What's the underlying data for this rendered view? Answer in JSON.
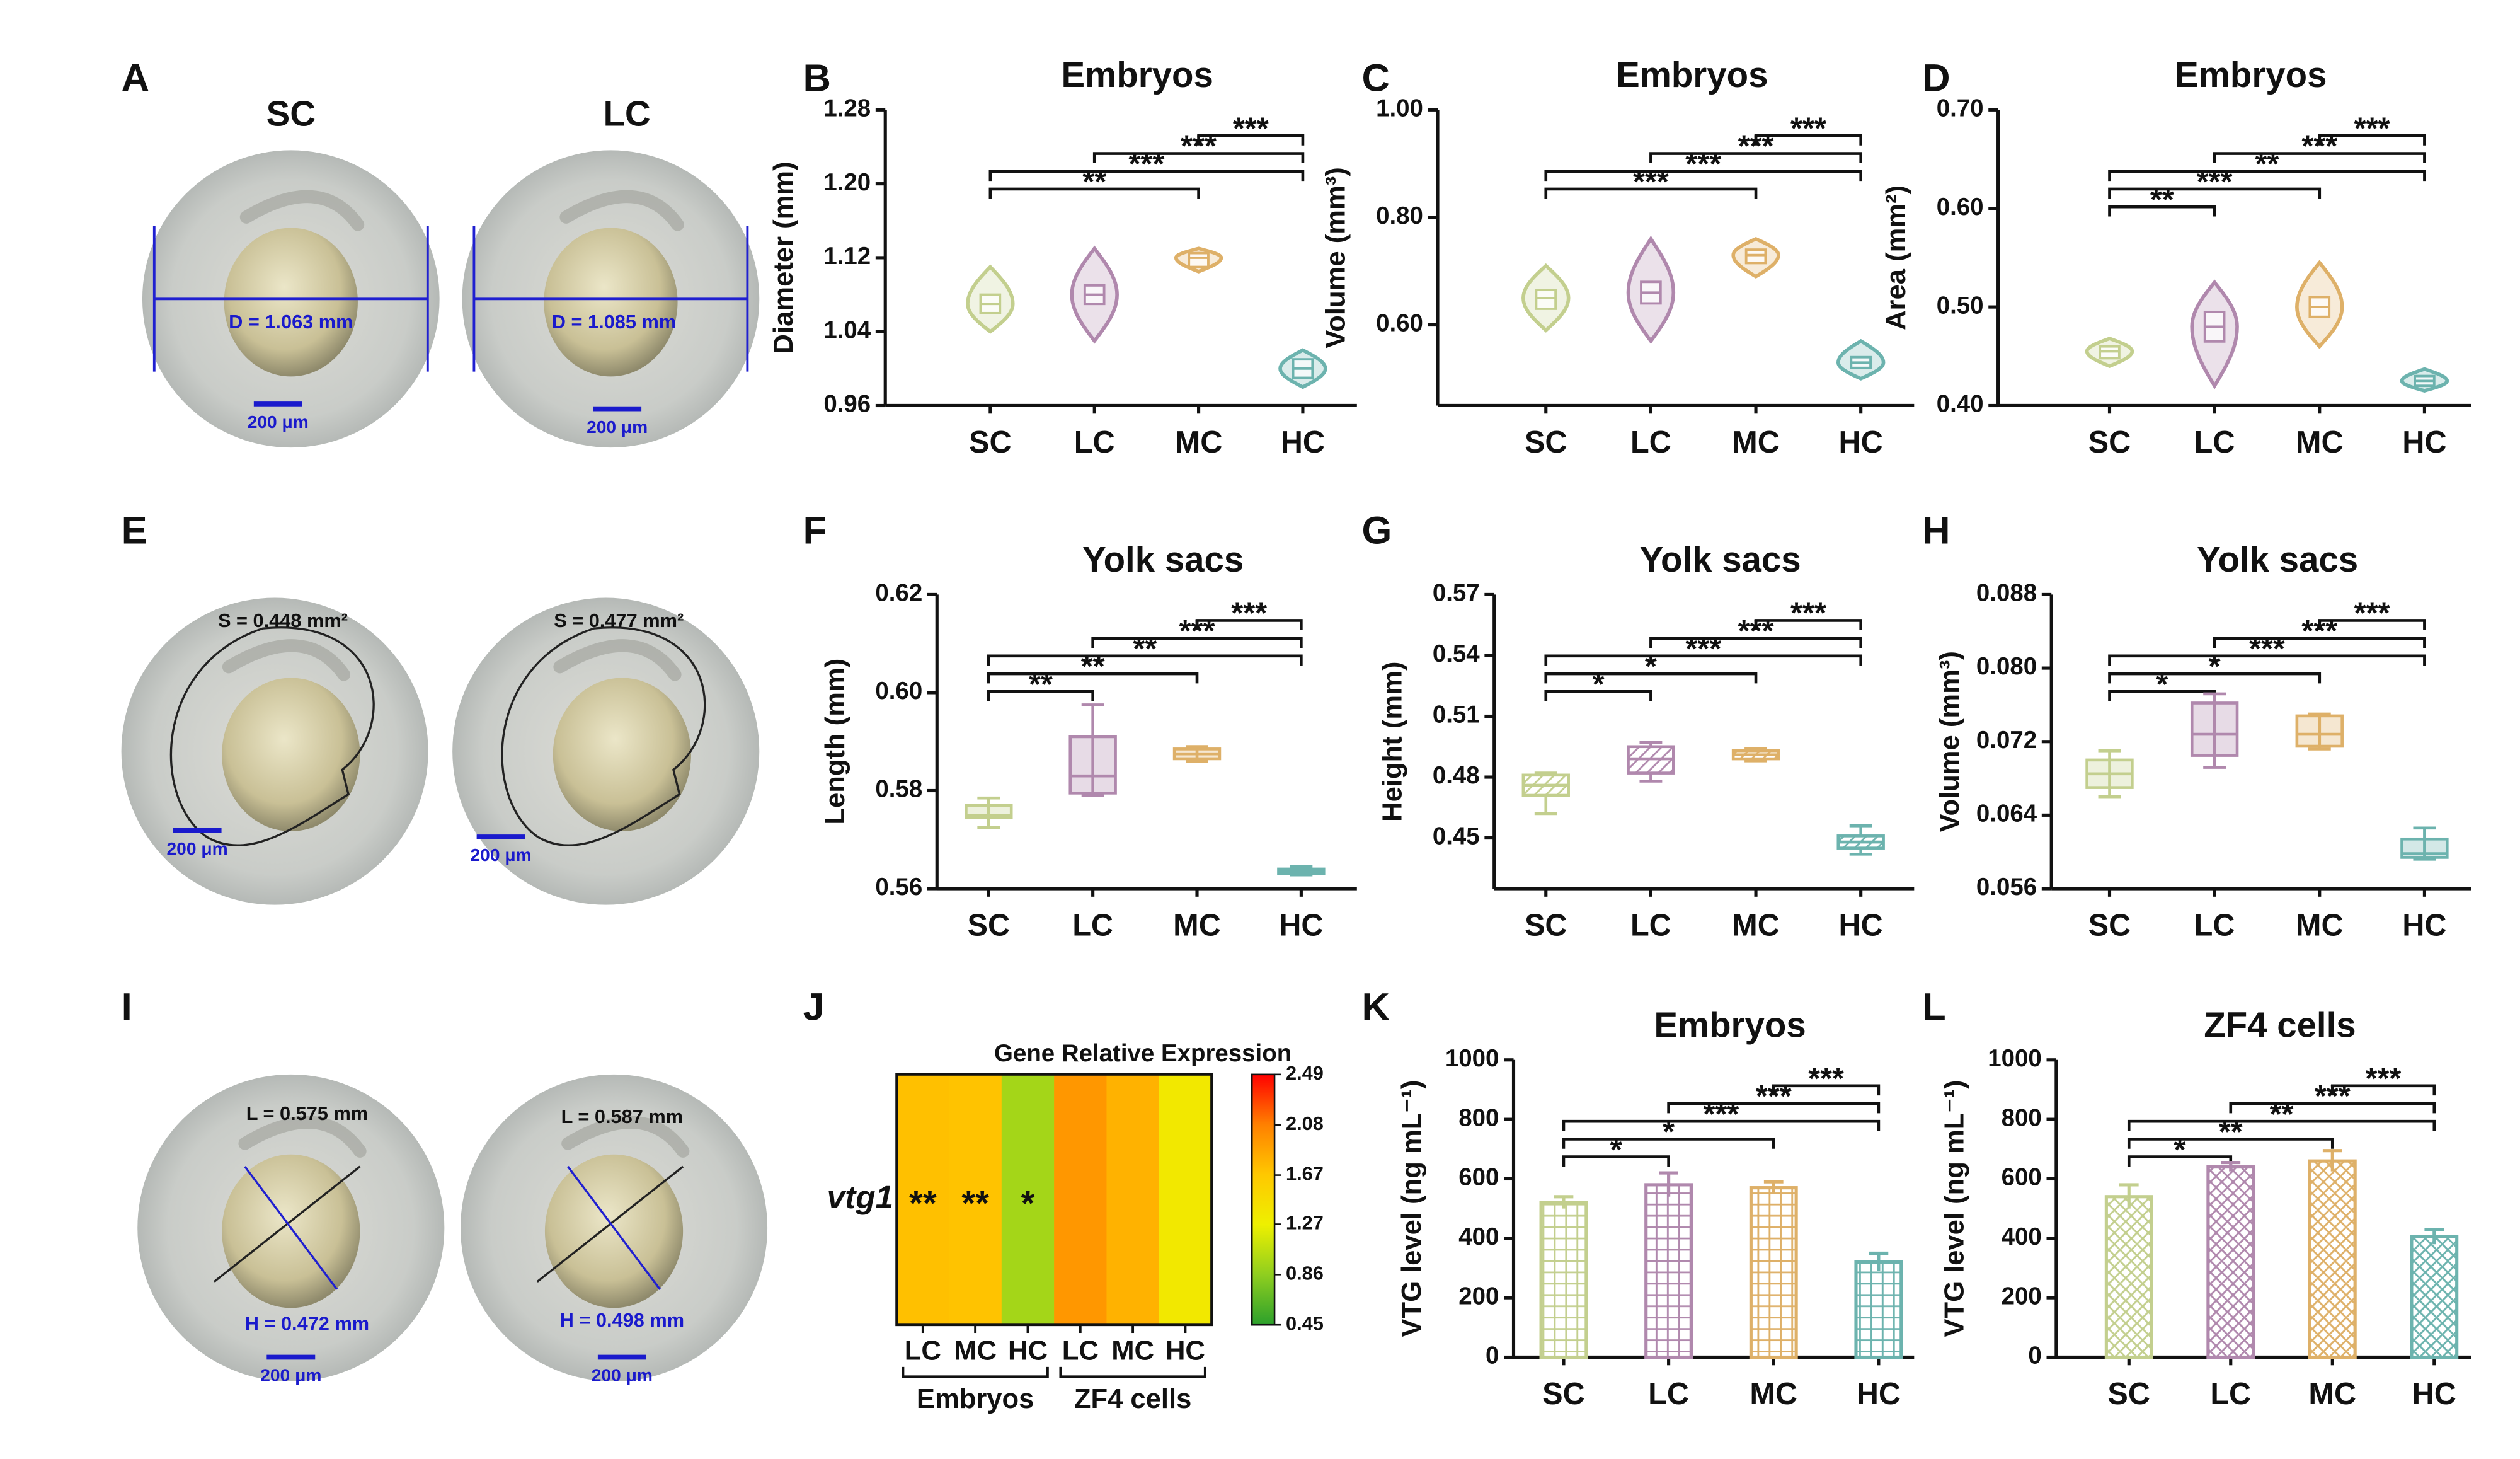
{
  "photo_panels": [
    {
      "letter": "A",
      "images": [
        {
          "title": "SC",
          "measure": "D = 1.063 mm",
          "scale": "200 μm"
        },
        {
          "title": "LC",
          "measure": "D = 1.085 mm",
          "scale": "200 μm"
        }
      ]
    },
    {
      "letter": "E",
      "images": [
        {
          "measure": "S = 0.448 mm²",
          "scale": "200 μm"
        },
        {
          "measure": "S = 0.477 mm²",
          "scale": "200 μm"
        }
      ]
    },
    {
      "letter": "I",
      "images": [
        {
          "measure": "L = 0.575 mm",
          "measure2": "H = 0.472 mm",
          "scale": "200 μm"
        },
        {
          "measure": "L = 0.587 mm",
          "measure2": "H = 0.498 mm",
          "scale": "200 μm"
        }
      ]
    }
  ],
  "chart_data": [
    {
      "letter": "B",
      "type": "violin",
      "title": "Embryos",
      "ylabel": "Diameter (mm)",
      "categories": [
        "SC",
        "LC",
        "MC",
        "HC"
      ],
      "colors": [
        "#c3cf8e",
        "#b088ad",
        "#deb068",
        "#6cb3ae"
      ],
      "ylim": [
        0.96,
        1.28
      ],
      "yticks": [
        0.96,
        1.04,
        1.12,
        {
          "value": 1.2,
          "label": "1.20"
        },
        1.28
      ],
      "stats": [
        {
          "min": 1.04,
          "q1": 1.06,
          "median": 1.07,
          "q3": 1.08,
          "max": 1.11
        },
        {
          "min": 1.03,
          "q1": 1.07,
          "median": 1.08,
          "q3": 1.09,
          "max": 1.13
        },
        {
          "min": 1.105,
          "q1": 1.11,
          "median": 1.12,
          "q3": 1.125,
          "max": 1.13
        },
        {
          "min": 0.98,
          "q1": 0.99,
          "median": 1.0,
          "q3": 1.01,
          "max": 1.02
        }
      ],
      "brackets": [
        {
          "from": 0,
          "to": 2,
          "label": "**"
        },
        {
          "from": 0,
          "to": 3,
          "label": "***"
        },
        {
          "from": 1,
          "to": 3,
          "label": "***"
        },
        {
          "from": 2,
          "to": 3,
          "label": "***"
        }
      ]
    },
    {
      "letter": "C",
      "type": "violin",
      "title": "Embryos",
      "ylabel": "Volume (mm³)",
      "categories": [
        "SC",
        "LC",
        "MC",
        "HC"
      ],
      "colors": [
        "#c3cf8e",
        "#b088ad",
        "#deb068",
        "#6cb3ae"
      ],
      "ylim": [
        0.45,
        1.0
      ],
      "yticks": [
        {
          "value": 0.6,
          "label": "0.60"
        },
        {
          "value": 0.8,
          "label": "0.80"
        },
        {
          "value": 1.0,
          "label": "1.00"
        }
      ],
      "stats": [
        {
          "min": 0.59,
          "q1": 0.63,
          "median": 0.65,
          "q3": 0.665,
          "max": 0.71
        },
        {
          "min": 0.57,
          "q1": 0.64,
          "median": 0.66,
          "q3": 0.68,
          "max": 0.76
        },
        {
          "min": 0.69,
          "q1": 0.715,
          "median": 0.73,
          "q3": 0.74,
          "max": 0.76
        },
        {
          "min": 0.5,
          "q1": 0.52,
          "median": 0.53,
          "q3": 0.54,
          "max": 0.57
        }
      ],
      "brackets": [
        {
          "from": 0,
          "to": 2,
          "label": "***"
        },
        {
          "from": 0,
          "to": 3,
          "label": "***"
        },
        {
          "from": 1,
          "to": 3,
          "label": "***"
        },
        {
          "from": 2,
          "to": 3,
          "label": "***"
        }
      ]
    },
    {
      "letter": "D",
      "type": "violin",
      "title": "Embryos",
      "ylabel": "Area (mm²)",
      "categories": [
        "SC",
        "LC",
        "MC",
        "HC"
      ],
      "colors": [
        "#c3cf8e",
        "#b088ad",
        "#deb068",
        "#6cb3ae"
      ],
      "ylim": [
        0.4,
        0.7
      ],
      "yticks": [
        {
          "value": 0.4,
          "label": "0.40"
        },
        {
          "value": 0.5,
          "label": "0.50"
        },
        {
          "value": 0.6,
          "label": "0.60"
        },
        {
          "value": 0.7,
          "label": "0.70"
        }
      ],
      "stats": [
        {
          "min": 0.44,
          "q1": 0.448,
          "median": 0.455,
          "q3": 0.46,
          "max": 0.468
        },
        {
          "min": 0.42,
          "q1": 0.465,
          "median": 0.48,
          "q3": 0.495,
          "max": 0.525
        },
        {
          "min": 0.46,
          "q1": 0.49,
          "median": 0.5,
          "q3": 0.51,
          "max": 0.545
        },
        {
          "min": 0.415,
          "q1": 0.42,
          "median": 0.425,
          "q3": 0.43,
          "max": 0.437
        }
      ],
      "brackets": [
        {
          "from": 0,
          "to": 1,
          "label": "**"
        },
        {
          "from": 0,
          "to": 2,
          "label": "***"
        },
        {
          "from": 0,
          "to": 3,
          "label": "**"
        },
        {
          "from": 1,
          "to": 3,
          "label": "***"
        },
        {
          "from": 2,
          "to": 3,
          "label": "***"
        }
      ]
    },
    {
      "letter": "F",
      "type": "box",
      "title": "Yolk sacs",
      "ylabel": "Length (mm)",
      "fill_pattern": "solid",
      "categories": [
        "SC",
        "LC",
        "MC",
        "HC"
      ],
      "colors": [
        "#c3cf8e",
        "#b088ad",
        "#deb068",
        "#6cb3ae"
      ],
      "ylim": [
        0.56,
        0.62
      ],
      "yticks": [
        0.56,
        0.58,
        {
          "value": 0.6,
          "label": "0.60"
        },
        0.62
      ],
      "stats": [
        {
          "min": 0.5725,
          "q1": 0.5745,
          "median": 0.575,
          "q3": 0.577,
          "max": 0.5785
        },
        {
          "min": 0.579,
          "q1": 0.5795,
          "median": 0.583,
          "q3": 0.591,
          "max": 0.5975
        },
        {
          "min": 0.586,
          "q1": 0.5865,
          "median": 0.5875,
          "q3": 0.5885,
          "max": 0.589
        },
        {
          "min": 0.5628,
          "q1": 0.563,
          "median": 0.5635,
          "q3": 0.564,
          "max": 0.5645
        }
      ],
      "brackets": [
        {
          "from": 0,
          "to": 1,
          "label": "**"
        },
        {
          "from": 0,
          "to": 2,
          "label": "**"
        },
        {
          "from": 0,
          "to": 3,
          "label": "**"
        },
        {
          "from": 1,
          "to": 3,
          "label": "***"
        },
        {
          "from": 2,
          "to": 3,
          "label": "***"
        }
      ]
    },
    {
      "letter": "G",
      "type": "box",
      "title": "Yolk sacs",
      "ylabel": "Height (mm)",
      "fill_pattern": "diagonal",
      "categories": [
        "SC",
        "LC",
        "MC",
        "HC"
      ],
      "colors": [
        "#c3cf8e",
        "#b088ad",
        "#deb068",
        "#6cb3ae"
      ],
      "ylim": [
        0.425,
        0.57
      ],
      "yticks": [
        0.45,
        0.48,
        0.51,
        0.54,
        0.57
      ],
      "stats": [
        {
          "min": 0.462,
          "q1": 0.471,
          "median": 0.476,
          "q3": 0.481,
          "max": 0.482
        },
        {
          "min": 0.478,
          "q1": 0.482,
          "median": 0.489,
          "q3": 0.495,
          "max": 0.497
        },
        {
          "min": 0.488,
          "q1": 0.489,
          "median": 0.491,
          "q3": 0.493,
          "max": 0.494
        },
        {
          "min": 0.442,
          "q1": 0.445,
          "median": 0.448,
          "q3": 0.451,
          "max": 0.456
        }
      ],
      "brackets": [
        {
          "from": 0,
          "to": 1,
          "label": "*"
        },
        {
          "from": 0,
          "to": 2,
          "label": "*"
        },
        {
          "from": 0,
          "to": 3,
          "label": "***"
        },
        {
          "from": 1,
          "to": 3,
          "label": "***"
        },
        {
          "from": 2,
          "to": 3,
          "label": "***"
        }
      ]
    },
    {
      "letter": "H",
      "type": "box",
      "title": "Yolk sacs",
      "ylabel": "Volume (mm³)",
      "fill_pattern": "solid",
      "categories": [
        "SC",
        "LC",
        "MC",
        "HC"
      ],
      "colors": [
        "#c3cf8e",
        "#b088ad",
        "#deb068",
        "#6cb3ae"
      ],
      "ylim": [
        0.056,
        0.088
      ],
      "yticks": [
        0.056,
        0.064,
        0.072,
        {
          "value": 0.08,
          "label": "0.080"
        },
        0.088
      ],
      "stats": [
        {
          "min": 0.066,
          "q1": 0.067,
          "median": 0.0685,
          "q3": 0.07,
          "max": 0.071
        },
        {
          "min": 0.0692,
          "q1": 0.0705,
          "median": 0.0728,
          "q3": 0.0762,
          "max": 0.0772
        },
        {
          "min": 0.0712,
          "q1": 0.0715,
          "median": 0.0728,
          "q3": 0.0748,
          "max": 0.075
        },
        {
          "min": 0.0592,
          "q1": 0.0594,
          "median": 0.0598,
          "q3": 0.0614,
          "max": 0.0626
        }
      ],
      "brackets": [
        {
          "from": 0,
          "to": 1,
          "label": "*"
        },
        {
          "from": 0,
          "to": 2,
          "label": "*"
        },
        {
          "from": 0,
          "to": 3,
          "label": "***"
        },
        {
          "from": 1,
          "to": 3,
          "label": "***"
        },
        {
          "from": 2,
          "to": 3,
          "label": "***"
        }
      ]
    },
    {
      "letter": "J",
      "type": "heatmap",
      "title": "Gene Relative Expression",
      "row": "vtg1",
      "columns": [
        "LC",
        "MC",
        "HC",
        "LC",
        "MC",
        "HC"
      ],
      "groups": [
        {
          "name": "Embryos",
          "from": 0,
          "to": 2
        },
        {
          "name": "ZF4 cells",
          "from": 3,
          "to": 5
        }
      ],
      "values": [
        1.72,
        1.7,
        0.95,
        1.95,
        1.8,
        1.35
      ],
      "annotations": [
        "**",
        "**",
        "*",
        null,
        null,
        null
      ],
      "clim": [
        0.45,
        2.49
      ],
      "cticks": [
        0.45,
        0.86,
        1.27,
        1.67,
        2.08,
        2.49
      ],
      "colormap": [
        "#2ca02c",
        "#8fce1f",
        "#eef000",
        "#ffc800",
        "#ff8000",
        "#ff0000"
      ]
    },
    {
      "letter": "K",
      "type": "bar",
      "title": "Embryos",
      "ylabel": "VTG level (ng mL⁻¹)",
      "fill_pattern": "grid",
      "categories": [
        "SC",
        "LC",
        "MC",
        "HC"
      ],
      "colors": [
        "#c3cf8e",
        "#b088ad",
        "#deb068",
        "#6cb3ae"
      ],
      "ylim": [
        0,
        1000
      ],
      "yticks": [
        0,
        200,
        400,
        600,
        800,
        1000
      ],
      "values": [
        520,
        580,
        570,
        320
      ],
      "errors": [
        20,
        40,
        20,
        30
      ],
      "brackets": [
        {
          "from": 0,
          "to": 1,
          "label": "*"
        },
        {
          "from": 0,
          "to": 2,
          "label": "*"
        },
        {
          "from": 0,
          "to": 3,
          "label": "***"
        },
        {
          "from": 1,
          "to": 3,
          "label": "***"
        },
        {
          "from": 2,
          "to": 3,
          "label": "***"
        }
      ]
    },
    {
      "letter": "L",
      "type": "bar",
      "title": "ZF4 cells",
      "ylabel": "VTG level (ng mL⁻¹)",
      "fill_pattern": "crosshatch",
      "categories": [
        "SC",
        "LC",
        "MC",
        "HC"
      ],
      "colors": [
        "#c3cf8e",
        "#b088ad",
        "#deb068",
        "#6cb3ae"
      ],
      "ylim": [
        0,
        1000
      ],
      "yticks": [
        0,
        200,
        400,
        600,
        800,
        1000
      ],
      "values": [
        540,
        640,
        660,
        405
      ],
      "errors": [
        40,
        15,
        35,
        25
      ],
      "brackets": [
        {
          "from": 0,
          "to": 1,
          "label": "*"
        },
        {
          "from": 0,
          "to": 2,
          "label": "**"
        },
        {
          "from": 0,
          "to": 3,
          "label": "**"
        },
        {
          "from": 1,
          "to": 3,
          "label": "***"
        },
        {
          "from": 2,
          "to": 3,
          "label": "***"
        }
      ]
    }
  ]
}
